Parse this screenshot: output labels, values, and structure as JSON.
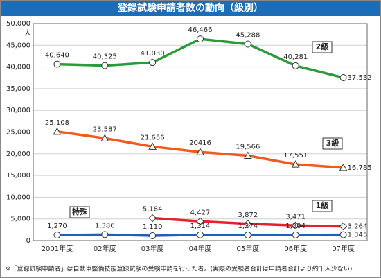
{
  "chart_data": {
    "type": "line",
    "title": "登録試験申請者数の動向（級別）",
    "y_unit": "人",
    "categories": [
      "2001年度",
      "02年度",
      "03年度",
      "04年度",
      "05年度",
      "06年度",
      "07年度"
    ],
    "series": [
      {
        "name": "2級",
        "color": "#2a9a3a",
        "marker": "circle",
        "values": [
          40640,
          40325,
          41030,
          46466,
          45288,
          40281,
          37532
        ],
        "value_labels": [
          "40,640",
          "40,325",
          "41,030",
          "46,466",
          "45,288",
          "40,281",
          "37,532"
        ]
      },
      {
        "name": "3級",
        "color": "#f05a1e",
        "marker": "triangle",
        "values": [
          25108,
          23587,
          21656,
          20416,
          19566,
          17551,
          16785
        ],
        "value_labels": [
          "25,108",
          "23,587",
          "21,656",
          "20416",
          "19,566",
          "17,551",
          "16,785"
        ]
      },
      {
        "name": "1級",
        "color": "#e8202a",
        "marker": "diamond",
        "values": [
          null,
          null,
          5184,
          4427,
          3872,
          3471,
          3264
        ],
        "value_labels": [
          null,
          null,
          "5,184",
          "4,427",
          "3,872",
          "3,471",
          "3,264"
        ]
      },
      {
        "name": "特殊",
        "color": "#1f5fb8",
        "marker": "circle",
        "values": [
          1270,
          1386,
          1110,
          1314,
          1274,
          1304,
          1345
        ],
        "value_labels": [
          "1,270",
          "1,386",
          "1,110",
          "1,314",
          "1,274",
          "1,304",
          "1,345"
        ]
      }
    ],
    "ylim": [
      0,
      50000
    ],
    "yticks": [
      0,
      {
        "value": 5000,
        "label": "5,000"
      },
      {
        "value": 10000,
        "label": "10,000"
      },
      {
        "value": 15000,
        "label": "15,000"
      },
      {
        "value": 20000,
        "label": "20,000"
      },
      {
        "value": 25000,
        "label": "25,000"
      },
      {
        "value": 30000,
        "label": "30,000"
      },
      {
        "value": 35000,
        "label": "35,000"
      },
      {
        "value": 40000,
        "label": "40,000"
      },
      {
        "value": 45000,
        "label": "45,000"
      },
      {
        "value": 50000,
        "label": "50,000"
      }
    ],
    "grid": true,
    "footnote": "※「登録試験申請者」は自動車整備技能登録試験の受験申請を行った者。(実際の受験者合計は申請者合計より約千人少ない)"
  }
}
